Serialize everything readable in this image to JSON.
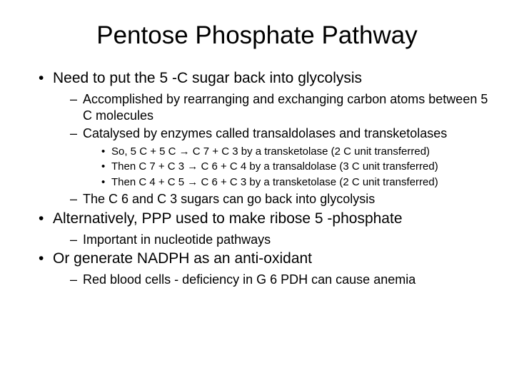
{
  "title": "Pentose Phosphate Pathway",
  "bullets": {
    "b1": "Need to put the 5 -C sugar back into glycolysis",
    "b1_1": "Accomplished by rearranging and exchanging carbon atoms between 5 C molecules",
    "b1_2": "Catalysed by enzymes called transaldolases and transketolases",
    "b1_2_1": "So, 5 C + 5 C → C 7 + C 3 by a transketolase (2 C unit transferred)",
    "b1_2_2": "Then C 7 + C 3 → C 6 + C 4 by a transaldolase (3 C unit transferred)",
    "b1_2_3": "Then C 4 + C 5 → C 6 + C 3 by a transketolase (2 C unit transferred)",
    "b1_3": "The C 6 and C 3 sugars can go back into glycolysis",
    "b2": "Alternatively, PPP used to make ribose 5 -phosphate",
    "b2_1": "Important in nucleotide pathways",
    "b3": "Or generate NADPH as an anti-oxidant",
    "b3_1": "Red blood cells - deficiency in G 6 PDH can cause anemia"
  },
  "style": {
    "background_color": "#ffffff",
    "text_color": "#000000",
    "title_fontsize": 35,
    "level1_fontsize": 21,
    "level2_fontsize": 18,
    "level3_fontsize": 15,
    "font_family": "Arial"
  }
}
